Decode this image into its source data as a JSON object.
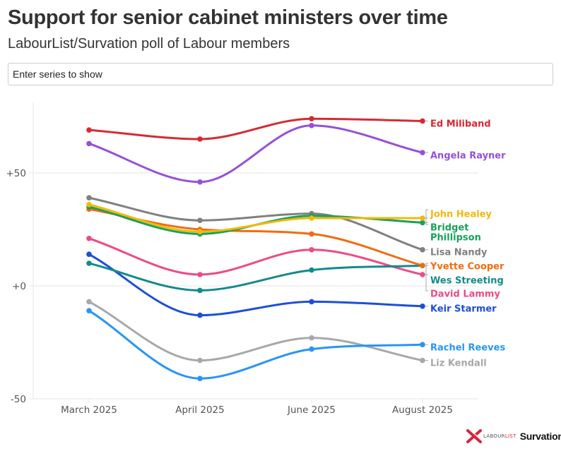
{
  "header": {
    "title": "Support for senior cabinet ministers over time",
    "subtitle": "LabourList/Survation poll of Labour members"
  },
  "filter": {
    "placeholder": "Enter series to show",
    "value": ""
  },
  "chart_data": {
    "type": "line",
    "title": "Support for senior cabinet ministers over time",
    "subtitle": "LabourList/Survation poll of Labour members",
    "xlabel": "",
    "ylabel": "",
    "categories": [
      "March 2025",
      "April 2025",
      "June 2025",
      "August 2025"
    ],
    "y_ticks": [
      {
        "value": 50,
        "label": "+50"
      },
      {
        "value": 0,
        "label": "+0"
      },
      {
        "value": -50,
        "label": "-50"
      }
    ],
    "ylim": [
      -50,
      80
    ],
    "grid": true,
    "legend": "direct-labels-right",
    "series": [
      {
        "name": "Ed Miliband",
        "color": "#d62a33",
        "values": [
          69,
          65,
          74,
          73
        ]
      },
      {
        "name": "Angela Rayner",
        "color": "#9650d8",
        "values": [
          63,
          46,
          71,
          59
        ]
      },
      {
        "name": "John Healey",
        "color": "#f2b90c",
        "values": [
          36,
          24,
          30,
          30
        ]
      },
      {
        "name": "Bridget Phillipson",
        "color": "#16a25a",
        "values": [
          35,
          23,
          31,
          28
        ]
      },
      {
        "name": "Lisa Nandy",
        "color": "#808080",
        "values": [
          39,
          29,
          32,
          16
        ]
      },
      {
        "name": "Yvette Cooper",
        "color": "#f26b0f",
        "values": [
          34,
          25,
          23,
          9
        ]
      },
      {
        "name": "Wes Streeting",
        "color": "#138a8c",
        "values": [
          10,
          -2,
          7,
          9
        ]
      },
      {
        "name": "David Lammy",
        "color": "#ec4b86",
        "values": [
          21,
          5,
          16,
          5
        ]
      },
      {
        "name": "Keir Starmer",
        "color": "#1c4fd8",
        "values": [
          14,
          -13,
          -7,
          -9
        ]
      },
      {
        "name": "Rachel Reeves",
        "color": "#2895f5",
        "values": [
          -11,
          -41,
          -28,
          -26
        ]
      },
      {
        "name": "Liz Kendall",
        "color": "#a8a8ab",
        "values": [
          -7,
          -33,
          -23,
          -33
        ]
      }
    ],
    "label_order": [
      "Ed Miliband",
      "Angela Rayner",
      "John Healey",
      "Bridget Phillipson",
      "Lisa Nandy",
      "Yvette Cooper",
      "Wes Streeting",
      "David Lammy",
      "Keir Starmer",
      "Rachel Reeves",
      "Liz Kendall"
    ]
  },
  "footer": {
    "logos": {
      "labourlist_prefix": "LABOUR",
      "labourlist_suffix": "LIST",
      "survation": "Survation."
    },
    "brand_colors": {
      "labourlist_red": "#d6263c"
    }
  }
}
